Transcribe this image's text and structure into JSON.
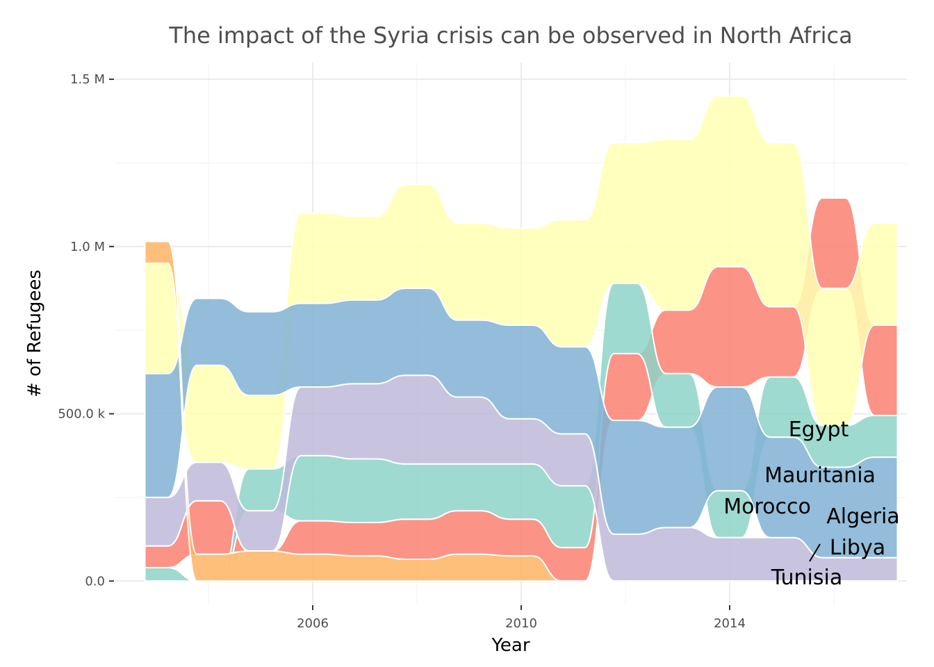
{
  "chart_data": {
    "type": "area",
    "title": "The impact of the Syria crisis can be observed in North Africa",
    "xlabel": "Year",
    "ylabel": "# of Refugees",
    "x_ticks": [
      2006,
      2010,
      2014
    ],
    "y_ticks": [
      0,
      500000,
      1000000,
      1500000
    ],
    "y_tick_labels": [
      "0.0",
      "500.0 k",
      "1.0 M",
      "1.5 M"
    ],
    "xlim": [
      2002.2,
      2017.4
    ],
    "ylim": [
      -70000,
      1550000
    ],
    "grid": true,
    "legend": "direct labels at right",
    "x": [
      2003,
      2004,
      2005,
      2006,
      2007,
      2008,
      2009,
      2010,
      2011,
      2012,
      2013,
      2014,
      2015,
      2016,
      2017
    ],
    "series": [
      {
        "name": "Egypt",
        "color": "#fb8072",
        "values": [
          65000,
          160000,
          0,
          100000,
          100000,
          120000,
          130000,
          110000,
          100000,
          200000,
          190000,
          360000,
          210000,
          270000,
          270000
        ],
        "order": [
          1,
          2,
          1,
          2,
          2,
          2,
          2,
          2,
          2,
          4,
          5,
          5,
          5,
          6,
          5
        ]
      },
      {
        "name": "Mauritania",
        "color": "#8dd3c7",
        "values": [
          40000,
          0,
          125000,
          195000,
          190000,
          165000,
          140000,
          165000,
          185000,
          210000,
          160000,
          140000,
          180000,
          125000,
          125000
        ],
        "order": [
          0,
          0,
          3,
          3,
          3,
          3,
          3,
          3,
          3,
          5,
          4,
          3,
          4,
          4,
          4
        ]
      },
      {
        "name": "Morocco",
        "color": "#ffffb3",
        "values": [
          330000,
          290000,
          220000,
          270000,
          250000,
          310000,
          290000,
          290000,
          380000,
          420000,
          510000,
          510000,
          490000,
          410000,
          305000
        ],
        "order": [
          4,
          4,
          4,
          6,
          6,
          6,
          6,
          6,
          6,
          6,
          6,
          6,
          6,
          5,
          6
        ]
      },
      {
        "name": "Algeria",
        "color": "#bebada",
        "values": [
          145000,
          115000,
          120000,
          205000,
          225000,
          265000,
          200000,
          135000,
          155000,
          140000,
          160000,
          130000,
          130000,
          70000,
          70000
        ],
        "order": [
          2,
          3,
          2,
          4,
          4,
          4,
          4,
          4,
          4,
          1,
          2,
          1,
          1,
          2,
          1
        ]
      },
      {
        "name": "Libya",
        "color": "#80b1d3",
        "values": [
          370000,
          200000,
          250000,
          250000,
          250000,
          260000,
          230000,
          280000,
          260000,
          340000,
          300000,
          310000,
          300000,
          270000,
          300000
        ],
        "order": [
          3,
          5,
          5,
          5,
          5,
          5,
          5,
          5,
          5,
          3,
          3,
          4,
          3,
          3,
          3
        ]
      },
      {
        "name": "Tunisia",
        "color": "#fdb462",
        "values": [
          65000,
          80000,
          90000,
          80000,
          75000,
          65000,
          80000,
          75000,
          0,
          0,
          0,
          0,
          0,
          0,
          0
        ],
        "order": [
          5,
          1,
          0,
          0,
          0,
          0,
          0,
          0,
          0,
          0,
          0,
          0,
          0,
          0,
          0
        ]
      }
    ]
  },
  "labels": [
    {
      "text": "Egypt"
    },
    {
      "text": "Mauritania"
    },
    {
      "text": "Morocco"
    },
    {
      "text": "Algeria"
    },
    {
      "text": "Libya"
    },
    {
      "text": "Tunisia"
    }
  ]
}
